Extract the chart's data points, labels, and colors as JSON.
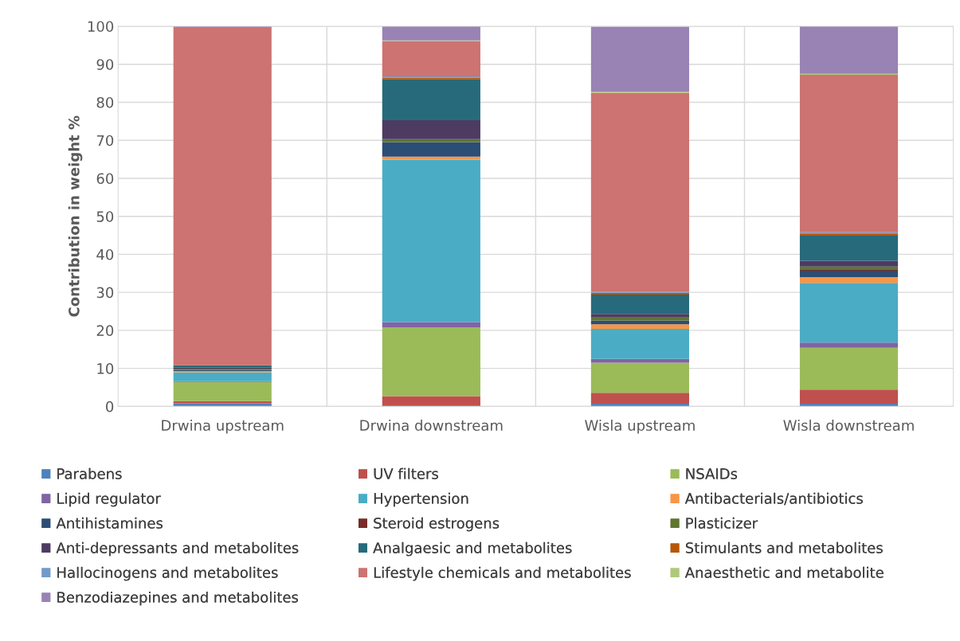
{
  "chart_data": {
    "type": "bar",
    "stacked": true,
    "ylabel": "Contribution in weight %",
    "categories": [
      "Drwina upstream",
      "Drwina downstream",
      "Wisla upstream",
      "Wisla downstream"
    ],
    "ylim": [
      0,
      100
    ],
    "yticks": [
      0,
      10,
      20,
      30,
      40,
      50,
      60,
      70,
      80,
      90,
      100
    ],
    "grid": true,
    "legend": "bottom",
    "series": [
      {
        "name": "Parabens",
        "color": "#4f81bd",
        "values": [
          0.8,
          0.3,
          0.7,
          0.7
        ]
      },
      {
        "name": "UV filters",
        "color": "#c0504d",
        "values": [
          0.6,
          2.4,
          2.9,
          3.7
        ]
      },
      {
        "name": "NSAIDs",
        "color": "#9bbb59",
        "values": [
          5.0,
          18.1,
          7.9,
          11.0
        ]
      },
      {
        "name": "Lipid regulator",
        "color": "#8064a2",
        "values": [
          0.2,
          1.4,
          1.0,
          1.4
        ]
      },
      {
        "name": "Hypertension",
        "color": "#4bacc6",
        "values": [
          2.4,
          42.7,
          7.9,
          15.7
        ]
      },
      {
        "name": "Antibacterials/antibiotics",
        "color": "#f79646",
        "values": [
          0.3,
          0.8,
          1.2,
          1.5
        ]
      },
      {
        "name": "Antihistamines",
        "color": "#2c4d75",
        "values": [
          0.2,
          3.8,
          1.0,
          1.7
        ]
      },
      {
        "name": "Steroid estrogens",
        "color": "#772c2a",
        "values": [
          0.1,
          0.0,
          null,
          0.2
        ]
      },
      {
        "name": "Plasticizer",
        "color": "#5f7530",
        "values": [
          0.3,
          0.8,
          0.8,
          0.9
        ]
      },
      {
        "name": "Anti-depressants and metabolites",
        "color": "#4d3b62",
        "values": [
          0.3,
          5.0,
          0.9,
          1.5
        ]
      },
      {
        "name": "Analgaesic and metabolites",
        "color": "#276a7c",
        "values": [
          0.6,
          10.8,
          5.1,
          6.6
        ]
      },
      {
        "name": "Stimulants and metabolites",
        "color": "#b65708",
        "values": [
          0.0,
          0.4,
          0.5,
          0.6
        ]
      },
      {
        "name": "Hallocinogens and metabolites",
        "color": "#729aca",
        "values": [
          0.0,
          0.3,
          0.3,
          0.3
        ]
      },
      {
        "name": "Lifestyle chemicals and metabolites",
        "color": "#cd7371",
        "values": [
          88.8,
          9.3,
          52.3,
          41.4
        ]
      },
      {
        "name": "Anaesthetic and metabolite",
        "color": "#afc97a",
        "values": [
          0.0,
          0.2,
          0.3,
          0.3
        ]
      },
      {
        "name": "Benzodiazepines and metabolites",
        "color": "#9983b5",
        "values": [
          0.4,
          3.8,
          17.1,
          12.5
        ]
      }
    ]
  }
}
